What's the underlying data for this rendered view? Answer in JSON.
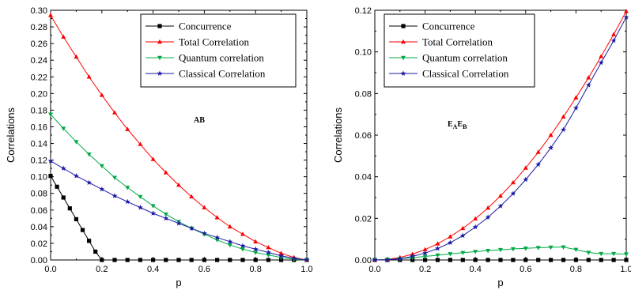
{
  "chart_data": [
    {
      "type": "line",
      "annotation": {
        "main": "AB",
        "sub": ""
      },
      "xlabel": "p",
      "ylabel": "Correlations",
      "xlim": [
        0.0,
        1.0
      ],
      "ylim": [
        0.0,
        0.3
      ],
      "xticks": [
        "0.0",
        "0.2",
        "0.4",
        "0.6",
        "0.8",
        "1.0"
      ],
      "yticks": [
        "0.00",
        "0.02",
        "0.04",
        "0.06",
        "0.08",
        "0.10",
        "0.12",
        "0.14",
        "0.16",
        "0.18",
        "0.20",
        "0.22",
        "0.24",
        "0.26",
        "0.28",
        "0.30"
      ],
      "legend_position": "top-right",
      "series": [
        {
          "name": "Concurrence",
          "color": "#000000",
          "marker": "square",
          "x": [
            0.0,
            0.025,
            0.05,
            0.075,
            0.1,
            0.125,
            0.15,
            0.175,
            0.2,
            0.25,
            0.3,
            0.35,
            0.4,
            0.45,
            0.5,
            0.55,
            0.6,
            0.65,
            0.7,
            0.75,
            0.8,
            0.85,
            0.9,
            0.95,
            1.0
          ],
          "y": [
            0.101,
            0.088,
            0.075,
            0.062,
            0.049,
            0.036,
            0.023,
            0.01,
            0.0,
            0.0,
            0.0,
            0.0,
            0.0,
            0.0,
            0.0,
            0.0,
            0.0,
            0.0,
            0.0,
            0.0,
            0.0,
            0.0,
            0.0,
            0.0,
            0.0
          ]
        },
        {
          "name": "Total Correlation",
          "color": "#ff0000",
          "marker": "triangle-up",
          "x": [
            0.0,
            0.05,
            0.1,
            0.15,
            0.2,
            0.25,
            0.3,
            0.35,
            0.4,
            0.45,
            0.5,
            0.55,
            0.6,
            0.65,
            0.7,
            0.75,
            0.8,
            0.85,
            0.9,
            0.95,
            1.0
          ],
          "y": [
            0.294,
            0.268,
            0.244,
            0.22,
            0.198,
            0.177,
            0.157,
            0.139,
            0.121,
            0.105,
            0.09,
            0.076,
            0.063,
            0.051,
            0.04,
            0.031,
            0.022,
            0.015,
            0.008,
            0.003,
            0.0
          ]
        },
        {
          "name": "Quantum correlation",
          "color": "#00aa44",
          "marker": "triangle-down",
          "x": [
            0.0,
            0.05,
            0.1,
            0.15,
            0.2,
            0.25,
            0.3,
            0.35,
            0.4,
            0.45,
            0.5,
            0.55,
            0.6,
            0.65,
            0.7,
            0.75,
            0.8,
            0.85,
            0.9,
            0.95,
            1.0
          ],
          "y": [
            0.175,
            0.158,
            0.142,
            0.127,
            0.113,
            0.099,
            0.087,
            0.076,
            0.065,
            0.055,
            0.046,
            0.038,
            0.031,
            0.024,
            0.018,
            0.013,
            0.009,
            0.006,
            0.003,
            0.001,
            0.0
          ]
        },
        {
          "name": "Classical Correlation",
          "color": "#1a1aa6",
          "marker": "star",
          "x": [
            0.0,
            0.05,
            0.1,
            0.15,
            0.2,
            0.25,
            0.3,
            0.35,
            0.4,
            0.45,
            0.5,
            0.55,
            0.6,
            0.65,
            0.7,
            0.75,
            0.8,
            0.85,
            0.9,
            0.95,
            1.0
          ],
          "y": [
            0.119,
            0.11,
            0.101,
            0.093,
            0.085,
            0.077,
            0.07,
            0.063,
            0.056,
            0.05,
            0.044,
            0.038,
            0.032,
            0.027,
            0.022,
            0.017,
            0.013,
            0.009,
            0.005,
            0.002,
            0.0
          ]
        }
      ]
    },
    {
      "type": "line",
      "annotation": {
        "main": "E",
        "sub": "A",
        "main2": "E",
        "sub2": "B"
      },
      "xlabel": "p",
      "ylabel": "Correlations",
      "xlim": [
        0.0,
        1.0
      ],
      "ylim": [
        0.0,
        0.12
      ],
      "xticks": [
        "0.0",
        "0.2",
        "0.4",
        "0.6",
        "0.8",
        "1.0"
      ],
      "yticks": [
        "0.00",
        "0.02",
        "0.04",
        "0.06",
        "0.08",
        "0.10",
        "0.12"
      ],
      "legend_position": "top-right",
      "series": [
        {
          "name": "Concurrence",
          "color": "#000000",
          "marker": "square",
          "x": [
            0.0,
            0.05,
            0.1,
            0.15,
            0.2,
            0.25,
            0.3,
            0.35,
            0.4,
            0.45,
            0.5,
            0.55,
            0.6,
            0.65,
            0.7,
            0.75,
            0.8,
            0.85,
            0.9,
            0.95,
            1.0
          ],
          "y": [
            0,
            0,
            0,
            0,
            0,
            0,
            0,
            0,
            0,
            0,
            0,
            0,
            0,
            0,
            0,
            0,
            0,
            0,
            0,
            0,
            0
          ]
        },
        {
          "name": "Total Correlation",
          "color": "#ff0000",
          "marker": "triangle-up",
          "x": [
            0.0,
            0.05,
            0.1,
            0.15,
            0.2,
            0.25,
            0.3,
            0.35,
            0.4,
            0.45,
            0.5,
            0.55,
            0.6,
            0.65,
            0.7,
            0.75,
            0.8,
            0.85,
            0.9,
            0.95,
            1.0
          ],
          "y": [
            0.0,
            0.0003,
            0.0012,
            0.0028,
            0.005,
            0.0078,
            0.0112,
            0.0152,
            0.0198,
            0.025,
            0.0308,
            0.0372,
            0.0442,
            0.0518,
            0.06,
            0.0688,
            0.078,
            0.0876,
            0.0978,
            0.1084,
            0.1195
          ]
        },
        {
          "name": "Quantum correlation",
          "color": "#00aa44",
          "marker": "triangle-down",
          "x": [
            0.0,
            0.05,
            0.1,
            0.15,
            0.2,
            0.25,
            0.3,
            0.35,
            0.4,
            0.45,
            0.5,
            0.55,
            0.6,
            0.65,
            0.7,
            0.75,
            0.8,
            0.85,
            0.9,
            0.95,
            1.0
          ],
          "y": [
            0.0,
            0.0002,
            0.0006,
            0.0011,
            0.0017,
            0.0023,
            0.0029,
            0.0035,
            0.004,
            0.0045,
            0.0049,
            0.0053,
            0.0056,
            0.0059,
            0.0061,
            0.0062,
            0.005,
            0.0036,
            0.003,
            0.003,
            0.0028
          ]
        },
        {
          "name": "Classical Correlation",
          "color": "#1a1aa6",
          "marker": "star",
          "x": [
            0.0,
            0.05,
            0.1,
            0.15,
            0.2,
            0.25,
            0.3,
            0.35,
            0.4,
            0.45,
            0.5,
            0.55,
            0.6,
            0.65,
            0.7,
            0.75,
            0.8,
            0.85,
            0.9,
            0.95,
            1.0
          ],
          "y": [
            0.0,
            0.0001,
            0.0006,
            0.0017,
            0.0033,
            0.0055,
            0.0083,
            0.0117,
            0.0158,
            0.0205,
            0.0259,
            0.0319,
            0.0386,
            0.0459,
            0.0539,
            0.0626,
            0.073,
            0.084,
            0.0948,
            0.1054,
            0.1167
          ]
        }
      ]
    }
  ]
}
